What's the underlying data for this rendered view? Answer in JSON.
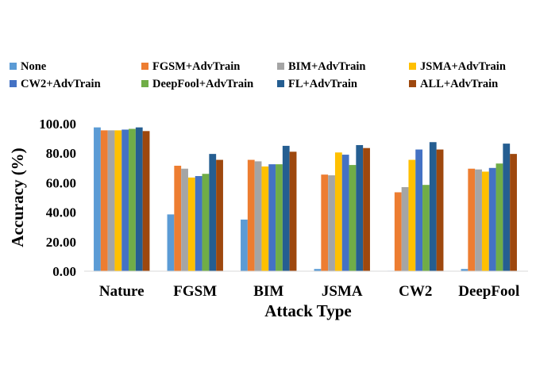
{
  "chart_data": {
    "type": "bar",
    "title": "",
    "xlabel": "Attack Type",
    "ylabel": "Accuracy (%)",
    "ylim": [
      0,
      100
    ],
    "yticks": [
      "0.00",
      "20.00",
      "40.00",
      "60.00",
      "80.00",
      "100.00"
    ],
    "grid": false,
    "legend_position": "top",
    "categories": [
      "Nature",
      "FGSM",
      "BIM",
      "JSMA",
      "CW2",
      "DeepFool"
    ],
    "series": [
      {
        "name": "None",
        "color": "#5B9BD5",
        "values": [
          97.5,
          38.5,
          35.0,
          1.5,
          0.3,
          1.5
        ]
      },
      {
        "name": "FGSM+AdvTrain",
        "color": "#ED7D31",
        "values": [
          95.5,
          71.5,
          75.5,
          65.5,
          53.5,
          69.5
        ]
      },
      {
        "name": "BIM+AdvTrain",
        "color": "#A5A5A5",
        "values": [
          95.5,
          69.5,
          74.5,
          65.0,
          57.0,
          69.0
        ]
      },
      {
        "name": "JSMA+AdvTrain",
        "color": "#FFC000",
        "values": [
          95.5,
          63.5,
          71.0,
          80.5,
          75.5,
          67.5
        ]
      },
      {
        "name": "CW2+AdvTrain",
        "color": "#4472C4",
        "values": [
          96.0,
          64.5,
          72.5,
          79.0,
          82.5,
          70.0
        ]
      },
      {
        "name": "DeepFool+AdvTrain",
        "color": "#70AD47",
        "values": [
          96.5,
          66.0,
          72.5,
          72.0,
          58.5,
          73.0
        ]
      },
      {
        "name": "FL+AdvTrain",
        "color": "#255E91",
        "values": [
          97.5,
          79.5,
          85.0,
          85.5,
          87.5,
          86.5
        ]
      },
      {
        "name": "ALL+AdvTrain",
        "color": "#9E480E",
        "values": [
          95.0,
          75.5,
          81.0,
          83.5,
          82.5,
          79.5
        ]
      }
    ]
  }
}
